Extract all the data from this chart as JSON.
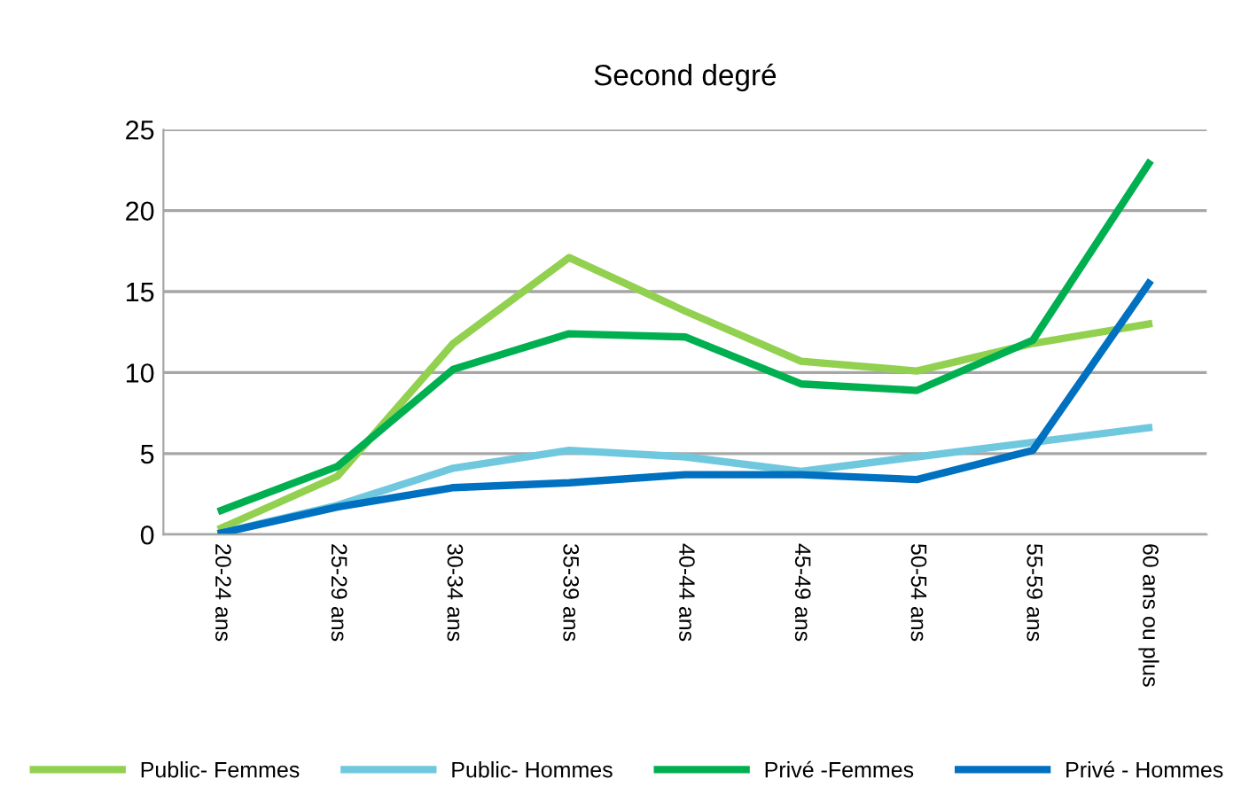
{
  "chart_data": {
    "type": "line",
    "title": "Second degré",
    "categories": [
      "20-24 ans",
      "25-29 ans",
      "30-34 ans",
      "35-39 ans",
      "40-44 ans",
      "45-49 ans",
      "50-54 ans",
      "55-59 ans",
      "60 ans ou plus"
    ],
    "series": [
      {
        "name": "Public- Femmes",
        "color": "#92d050",
        "values": [
          0.4,
          3.6,
          11.8,
          17.1,
          13.8,
          10.7,
          10.1,
          11.8,
          13.0
        ]
      },
      {
        "name": "Public- Hommes",
        "color": "#6fc8de",
        "values": [
          0.1,
          1.8,
          4.1,
          5.2,
          4.8,
          3.9,
          4.8,
          5.7,
          6.6
        ]
      },
      {
        "name": "Privé -Femmes",
        "color": "#00b050",
        "values": [
          1.5,
          4.2,
          10.2,
          12.4,
          12.2,
          9.3,
          8.9,
          12.0,
          22.9
        ]
      },
      {
        "name": "Privé - Hommes",
        "color": "#0070c0",
        "values": [
          0.1,
          1.7,
          2.9,
          3.2,
          3.7,
          3.7,
          3.4,
          5.2,
          15.5
        ]
      }
    ],
    "ylim": [
      0,
      25
    ],
    "yticks": [
      0,
      5,
      10,
      15,
      20,
      25
    ],
    "grid": "y",
    "legend": "bottom",
    "marker": "none",
    "line_style": "solid"
  }
}
